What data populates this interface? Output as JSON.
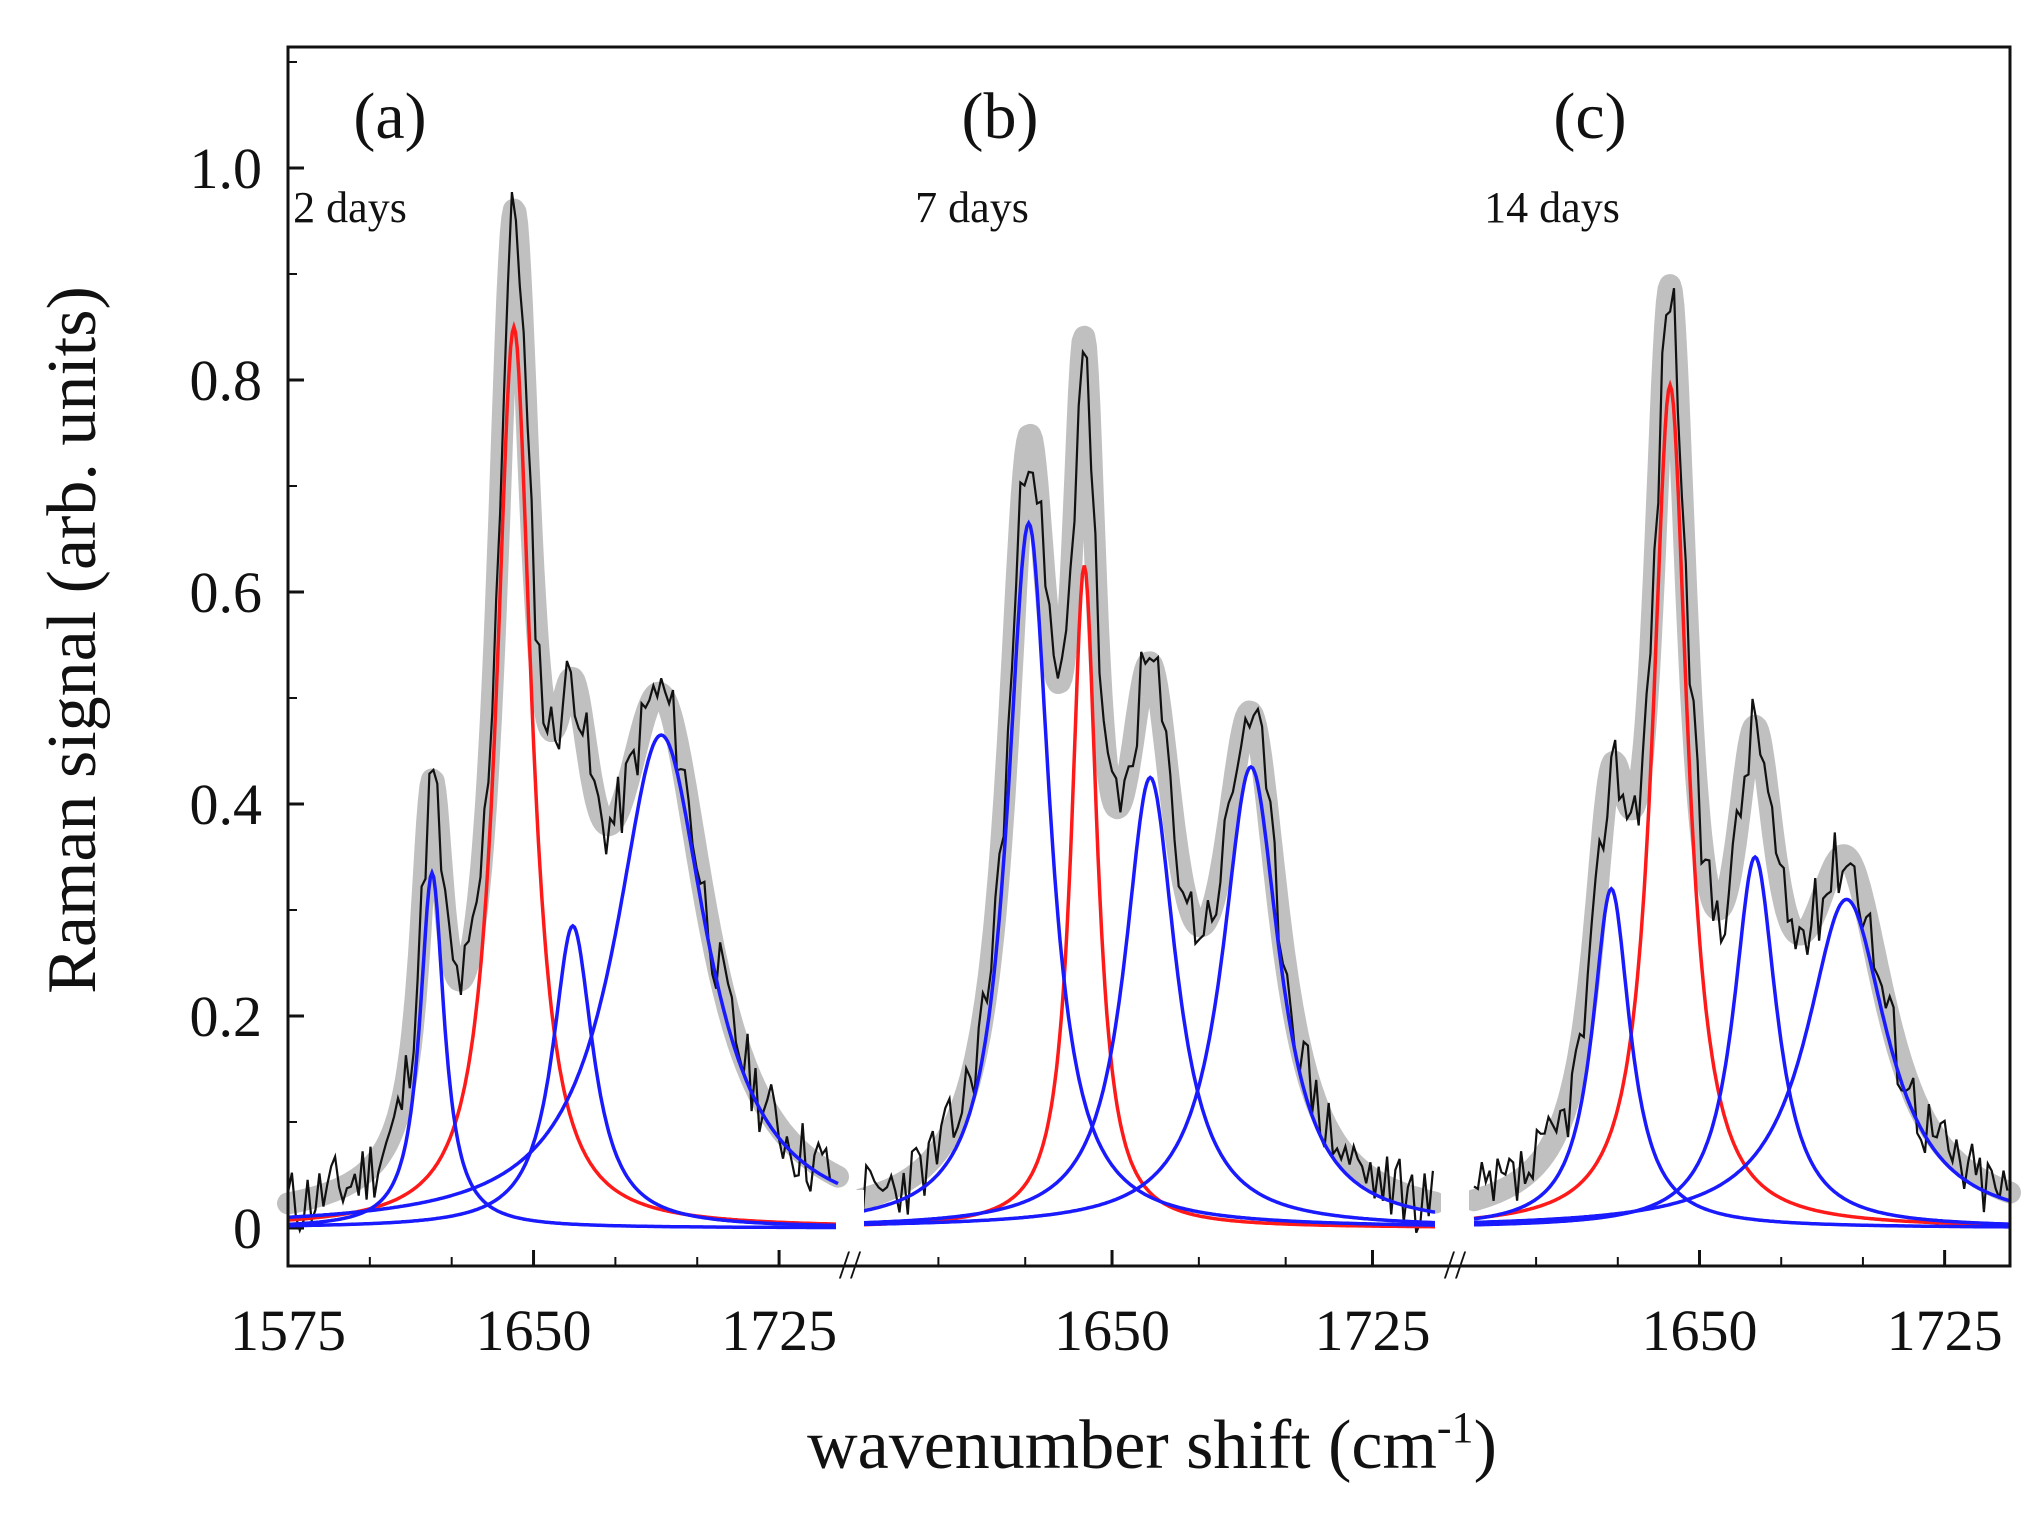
{
  "chart_data": {
    "type": "line",
    "xlabel": "wavenumber shift (cm",
    "xlabel_sup": "-1",
    "xlabel_tail": ")",
    "ylabel": "Raman signal (arb. units)",
    "ylim": [
      -0.03,
      1.11
    ],
    "yticks": [
      "0",
      "0.2",
      "0.4",
      "0.6",
      "0.8",
      "1.0"
    ],
    "ytick_values": [
      0,
      0.2,
      0.4,
      0.6,
      0.8,
      1.0
    ],
    "axis_break_marker": "//",
    "colors": {
      "measured": "#111111",
      "total_fit": "#c0c0c0",
      "red_component": "#ff1a1a",
      "blue_component": "#1a1aff"
    },
    "panels": [
      {
        "label": "(a)",
        "note": "2 days",
        "xlim": [
          1575,
          1743
        ],
        "xticks": [
          1575,
          1650,
          1725
        ],
        "xtick_labels": [
          "1575",
          "1650",
          "1725"
        ],
        "components": [
          {
            "color": "red",
            "center": 1644,
            "amplitude": 0.85,
            "width": 6.5
          },
          {
            "color": "blue",
            "center": 1619,
            "amplitude": 0.335,
            "width": 4.5
          },
          {
            "color": "blue",
            "center": 1662,
            "amplitude": 0.285,
            "width": 7.5
          },
          {
            "color": "blue",
            "center": 1689,
            "amplitude": 0.465,
            "width": 17
          }
        ],
        "noise_seed": 11
      },
      {
        "label": "(b)",
        "note": "7 days",
        "xlim": [
          1578,
          1743
        ],
        "xticks": [
          1650,
          1725
        ],
        "xtick_labels": [
          "1650",
          "1725"
        ],
        "components": [
          {
            "color": "red",
            "center": 1642,
            "amplitude": 0.625,
            "width": 4.5
          },
          {
            "color": "blue",
            "center": 1626,
            "amplitude": 0.665,
            "width": 7.5
          },
          {
            "color": "blue",
            "center": 1661,
            "amplitude": 0.425,
            "width": 9
          },
          {
            "color": "blue",
            "center": 1690,
            "amplitude": 0.435,
            "width": 10
          }
        ],
        "noise_seed": 23
      },
      {
        "label": "(c)",
        "note": "14 days",
        "xlim": [
          1581,
          1745
        ],
        "xticks": [
          1650,
          1725
        ],
        "xtick_labels": [
          "1650",
          "1725"
        ],
        "components": [
          {
            "color": "red",
            "center": 1641,
            "amplitude": 0.795,
            "width": 6.5
          },
          {
            "color": "blue",
            "center": 1623,
            "amplitude": 0.32,
            "width": 7
          },
          {
            "color": "blue",
            "center": 1667,
            "amplitude": 0.35,
            "width": 8
          },
          {
            "color": "blue",
            "center": 1695,
            "amplitude": 0.31,
            "width": 15
          }
        ],
        "noise_seed": 37
      }
    ]
  }
}
